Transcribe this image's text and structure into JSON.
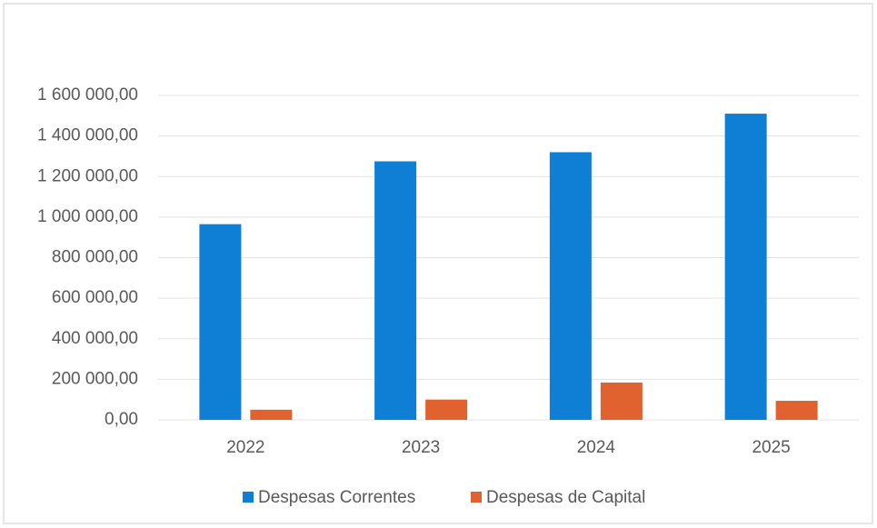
{
  "chart_data": {
    "type": "bar",
    "categories": [
      "2022",
      "2023",
      "2024",
      "2025"
    ],
    "series": [
      {
        "name": "Despesas Correntes",
        "color": "#0f7fd6",
        "values": [
          965000,
          1275000,
          1320000,
          1510000
        ]
      },
      {
        "name": "Despesas de Capital",
        "color": "#e0622e",
        "values": [
          50000,
          100000,
          184000,
          94000
        ]
      }
    ],
    "ylim": [
      0,
      1600000
    ],
    "yticks": [
      {
        "value": 0,
        "label": "0,00"
      },
      {
        "value": 200000,
        "label": "200 000,00"
      },
      {
        "value": 400000,
        "label": "400 000,00"
      },
      {
        "value": 600000,
        "label": "600 000,00"
      },
      {
        "value": 800000,
        "label": "800 000,00"
      },
      {
        "value": 1000000,
        "label": "1 000 000,00"
      },
      {
        "value": 1200000,
        "label": "1 200 000,00"
      },
      {
        "value": 1400000,
        "label": "1 400 000,00"
      },
      {
        "value": 1600000,
        "label": "1 600 000,00"
      }
    ],
    "grid": true,
    "legend": "bottom"
  }
}
